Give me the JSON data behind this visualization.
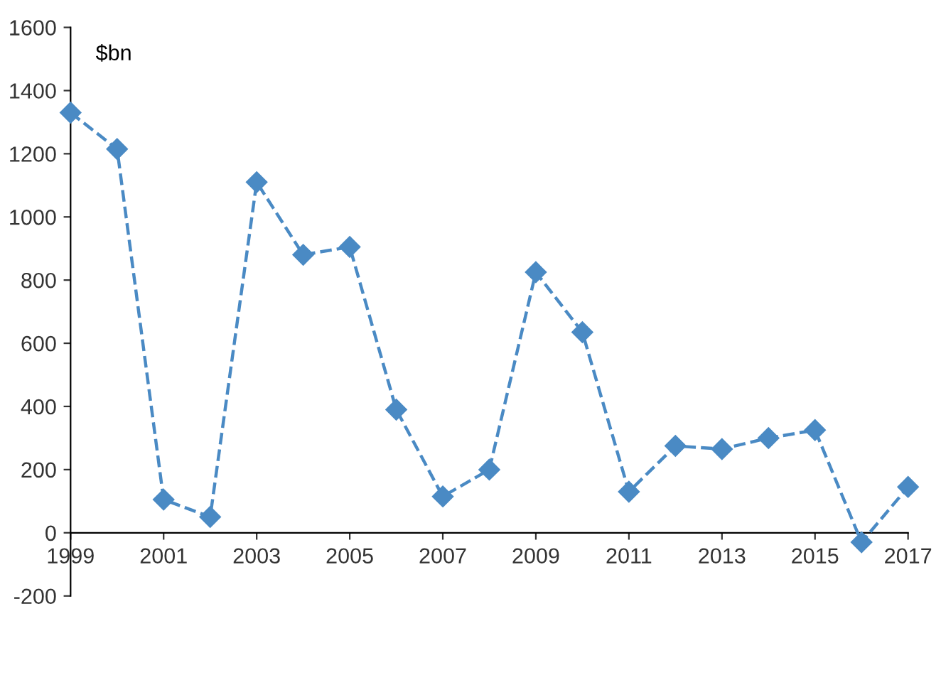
{
  "chart_data": {
    "type": "line",
    "ylabel": "$bn",
    "x": [
      1999,
      2000,
      2001,
      2002,
      2003,
      2004,
      2005,
      2006,
      2007,
      2008,
      2009,
      2010,
      2011,
      2012,
      2013,
      2014,
      2015,
      2016,
      2017
    ],
    "series": [
      {
        "color": "#4a8ac4",
        "values": [
          1330,
          1215,
          105,
          50,
          1110,
          880,
          905,
          390,
          115,
          200,
          825,
          635,
          130,
          275,
          265,
          300,
          325,
          -30,
          145
        ]
      }
    ],
    "xlim": [
      1999,
      2017
    ],
    "xticks": [
      1999,
      2001,
      2003,
      2005,
      2007,
      2009,
      2011,
      2013,
      2015,
      2017
    ],
    "ylim": [
      -200,
      1600
    ],
    "yticks": [
      -200,
      0,
      200,
      400,
      600,
      800,
      1000,
      1200,
      1400,
      1600
    ],
    "grid": false,
    "legend": false,
    "marker": "diamond",
    "line_style": "dashed"
  }
}
